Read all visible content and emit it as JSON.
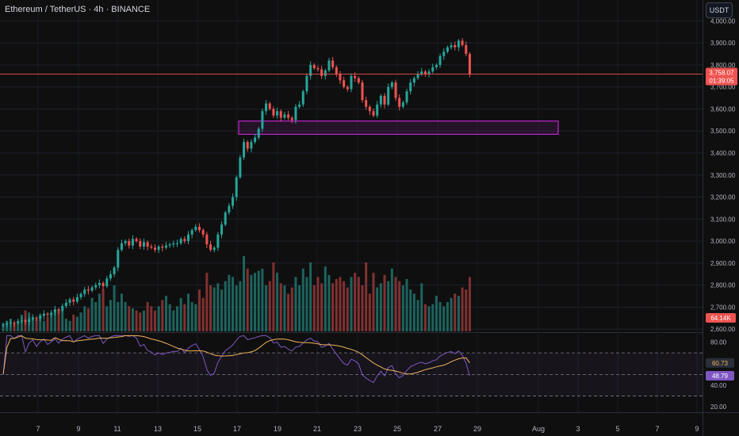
{
  "header": {
    "title": "Ethereum / TetherUS · 4h · BINANCE",
    "unit_button": "USDT"
  },
  "colors": {
    "up": "#26a69a",
    "down": "#ef5350",
    "grid": "#1e222d",
    "text": "#b2b5be",
    "zone": "#c026d3",
    "rsi": "#7e57c2",
    "rsi_ma": "#f0b25a",
    "price_line": "#ef5350"
  },
  "chart_data": {
    "type": "candlestick",
    "price_axis": {
      "labels": [
        "4,000.00",
        "3,900.00",
        "3,800.00",
        "3,700.00",
        "3,600.00",
        "3,500.00",
        "3,400.00",
        "3,300.00",
        "3,200.00",
        "3,100.00",
        "3,000.00",
        "2,900.00",
        "2,800.00",
        "2,700.00",
        "2,600.00"
      ],
      "values": [
        4000,
        3900,
        3800,
        3700,
        3600,
        3500,
        3400,
        3300,
        3200,
        3100,
        3000,
        2900,
        2800,
        2700,
        2600
      ],
      "ylim": [
        2590,
        4030
      ]
    },
    "x_axis": {
      "labels": [
        "7",
        "9",
        "11",
        "13",
        "15",
        "17",
        "19",
        "21",
        "23",
        "25",
        "27",
        "29",
        "Aug",
        "3",
        "5",
        "7",
        "9"
      ]
    },
    "last_price": {
      "label": "3,758.07",
      "countdown": "01:39:05",
      "value": 3758
    },
    "volume_badge": "64.14K",
    "zone": {
      "top": 3545,
      "bottom": 3485
    },
    "closes": [
      2620,
      2626,
      2630,
      2628,
      2636,
      2640,
      2633,
      2645,
      2652,
      2648,
      2660,
      2670,
      2665,
      2675,
      2690,
      2685,
      2705,
      2720,
      2735,
      2725,
      2745,
      2760,
      2780,
      2775,
      2790,
      2800,
      2810,
      2795,
      2830,
      2850,
      2880,
      2960,
      2990,
      3000,
      2980,
      3010,
      3000,
      2975,
      2995,
      2975,
      2970,
      2960,
      2975,
      2970,
      2980,
      2985,
      2990,
      2990,
      3010,
      3000,
      3030,
      3050,
      3065,
      3050,
      3030,
      2985,
      2960,
      2970,
      3030,
      3075,
      3130,
      3160,
      3200,
      3290,
      3380,
      3450,
      3420,
      3450,
      3470,
      3510,
      3590,
      3625,
      3600,
      3570,
      3590,
      3560,
      3575,
      3560,
      3550,
      3610,
      3620,
      3680,
      3750,
      3800,
      3785,
      3780,
      3750,
      3775,
      3820,
      3790,
      3760,
      3730,
      3700,
      3690,
      3750,
      3740,
      3720,
      3640,
      3610,
      3590,
      3570,
      3620,
      3660,
      3620,
      3700,
      3720,
      3650,
      3610,
      3630,
      3680,
      3720,
      3740,
      3760,
      3770,
      3760,
      3770,
      3790,
      3800,
      3840,
      3860,
      3880,
      3890,
      3880,
      3910,
      3890,
      3850,
      3758
    ],
    "volumes": [
      4,
      5,
      6,
      4,
      5,
      8,
      10,
      9,
      7,
      6,
      8,
      5,
      7,
      8,
      9,
      10,
      11,
      6,
      5,
      8,
      7,
      9,
      12,
      11,
      16,
      14,
      18,
      20,
      12,
      15,
      22,
      14,
      18,
      14,
      12,
      11,
      10,
      9,
      10,
      14,
      12,
      10,
      12,
      15,
      17,
      13,
      10,
      12,
      16,
      13,
      18,
      14,
      13,
      20,
      16,
      28,
      22,
      21,
      23,
      20,
      24,
      27,
      26,
      22,
      24,
      36,
      30,
      27,
      28,
      29,
      30,
      22,
      24,
      33,
      28,
      23,
      22,
      18,
      21,
      26,
      22,
      30,
      26,
      33,
      22,
      26,
      23,
      31,
      27,
      23,
      25,
      26,
      24,
      21,
      26,
      28,
      26,
      22,
      33,
      18,
      28,
      21,
      23,
      27,
      24,
      30,
      26,
      24,
      22,
      25,
      20,
      18,
      15,
      23,
      13,
      12,
      13,
      17,
      14,
      12,
      14,
      16,
      18,
      17,
      21,
      20,
      26
    ],
    "rsi": {
      "levels": {
        "upper_band": 70,
        "middle": 50,
        "lower_band": 30
      },
      "axis_labels": [
        "80.00",
        "40.00",
        "20.00"
      ],
      "axis_values": [
        80,
        40,
        20
      ],
      "ylim": [
        15,
        87
      ],
      "rsi_value": 48.79,
      "rsi_label": "48.79",
      "ma_value": 60.73,
      "ma_label": "60.73"
    }
  }
}
